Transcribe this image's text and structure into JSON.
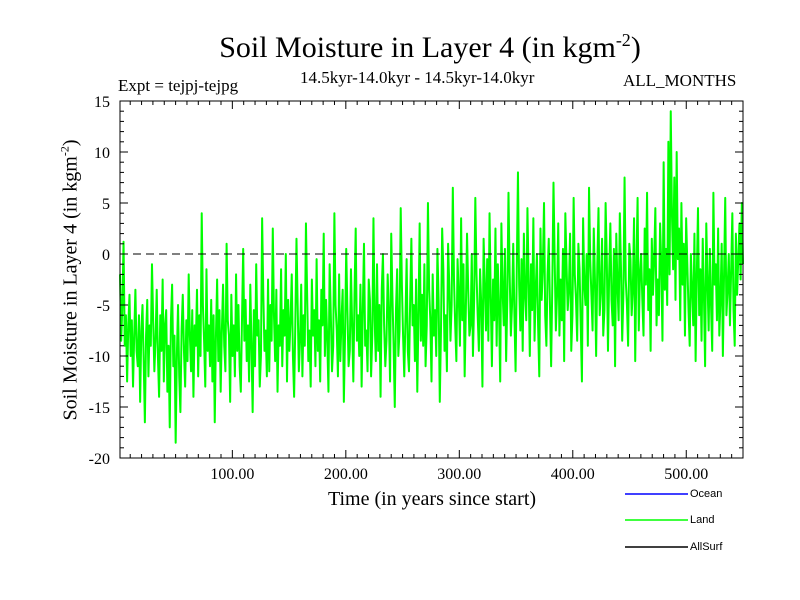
{
  "chart_data": {
    "type": "line",
    "title": "Soil Moisture in Layer 4 (in kgm",
    "title_sup": "-2",
    "title_close": ")",
    "expt_label": "Expt = tejpj-tejpg",
    "period_label": "14.5kyr-14.0kyr - 14.5kyr-14.0kyr",
    "months_label": "ALL_MONTHS",
    "ylabel": "Soil Moisture in Layer 4 (in kgm",
    "ylabel_sup": "-2",
    "ylabel_close": ")",
    "xlabel": "Time (in years since start)",
    "xlim": [
      1,
      550
    ],
    "ylim": [
      -20,
      15
    ],
    "y_ticks": [
      -20,
      -15,
      -10,
      -5,
      0,
      5,
      10,
      15
    ],
    "x_ticks": [
      100,
      200,
      300,
      400,
      500
    ],
    "x_tick_labels": [
      "100.00",
      "200.00",
      "300.00",
      "400.00",
      "500.00"
    ],
    "zero_line": 0,
    "series": [
      {
        "name": "Ocean",
        "color": "#0000ff",
        "values": []
      },
      {
        "name": "Land",
        "color": "#00ff00",
        "values": [
          -2.0,
          -8.5,
          -5.0,
          1.2,
          -9.0,
          -6.0,
          -12.5,
          -7.0,
          -4.0,
          -10.0,
          -6.5,
          -13.0,
          -8.0,
          -3.5,
          -9.5,
          -11.0,
          -6.0,
          -14.5,
          -7.5,
          -5.0,
          -10.5,
          -16.5,
          -8.0,
          -4.5,
          -12.0,
          -7.0,
          -9.0,
          -1.0,
          -6.5,
          -11.5,
          -8.5,
          -3.5,
          -10.0,
          -14.0,
          -6.0,
          -9.5,
          -2.5,
          -12.5,
          -7.0,
          -5.5,
          -13.5,
          -9.0,
          -17.0,
          -6.5,
          -3.0,
          -11.0,
          -8.0,
          -18.5,
          -10.0,
          -5.0,
          -12.0,
          -15.5,
          -7.5,
          -4.0,
          -9.5,
          -13.0,
          -6.5,
          -10.5,
          -2.0,
          -8.0,
          -11.5,
          -5.5,
          -14.0,
          -7.0,
          -9.0,
          -3.5,
          -12.0,
          -6.0,
          -10.0,
          4.0,
          -5.0,
          -8.5,
          -13.0,
          -1.5,
          -9.5,
          -7.0,
          -11.0,
          -4.5,
          -12.5,
          -6.0,
          -16.5,
          -8.0,
          -2.5,
          -10.5,
          -5.5,
          -13.5,
          -7.5,
          -3.0,
          -9.0,
          -11.5,
          1.0,
          -6.5,
          -8.0,
          -14.5,
          -4.0,
          -10.0,
          -7.0,
          -12.0,
          -2.0,
          -9.5,
          -5.0,
          -11.0,
          -13.5,
          -6.5,
          0.5,
          -8.5,
          -4.5,
          -10.5,
          -7.0,
          -12.5,
          -3.0,
          -9.0,
          -15.5,
          -5.5,
          -11.0,
          -1.0,
          -8.0,
          -6.5,
          -13.0,
          -10.0,
          3.5,
          -4.0,
          -9.5,
          -7.5,
          -12.0,
          -2.5,
          -11.5,
          -5.0,
          -8.5,
          2.5,
          -6.0,
          -10.5,
          -3.5,
          -13.5,
          -7.0,
          -9.0,
          -1.5,
          -11.0,
          -5.5,
          -8.0,
          0.0,
          -12.5,
          -4.5,
          -9.5,
          -6.5,
          -2.0,
          -10.0,
          -14.0,
          -7.0,
          1.5,
          -5.0,
          -11.5,
          -8.5,
          -3.0,
          -12.0,
          -6.0,
          -9.0,
          3.0,
          -4.0,
          -10.5,
          -7.5,
          -13.0,
          -2.5,
          -8.0,
          -5.5,
          -11.0,
          -0.5,
          -9.5,
          -6.5,
          -12.5,
          -3.5,
          -7.0,
          2.0,
          -10.0,
          -4.5,
          -8.5,
          -13.5,
          -1.0,
          -6.0,
          -11.5,
          -9.0,
          4.0,
          -5.0,
          -7.5,
          -12.0,
          -2.0,
          -10.5,
          -6.5,
          -3.5,
          -14.5,
          -8.0,
          0.5,
          -5.5,
          -11.0,
          -9.5,
          -1.5,
          -7.0,
          -12.5,
          -4.0,
          2.5,
          -8.5,
          -6.0,
          -10.0,
          -3.0,
          -13.0,
          -5.5,
          1.0,
          -9.0,
          -7.5,
          -11.5,
          -2.5,
          -4.5,
          -12.0,
          -8.0,
          3.5,
          -6.5,
          -10.5,
          -1.0,
          -9.5,
          -5.0,
          -14.0,
          -3.5,
          0.0,
          -7.0,
          -11.0,
          -8.5,
          -2.0,
          -6.0,
          -12.5,
          2.0,
          -4.0,
          -9.0,
          -15.0,
          -5.5,
          -1.5,
          -10.0,
          -7.5,
          4.5,
          -3.0,
          -8.0,
          -12.0,
          -6.5,
          -0.5,
          -9.5,
          -11.5,
          -4.5,
          1.5,
          -7.0,
          -5.0,
          -10.5,
          -2.5,
          -13.5,
          -6.0,
          3.0,
          -8.5,
          -4.0,
          -9.0,
          -1.0,
          -11.0,
          -7.0,
          5.0,
          -3.5,
          -6.5,
          -12.5,
          -2.0,
          -8.0,
          -5.5,
          -10.0,
          0.5,
          -4.5,
          -14.5,
          -7.5,
          2.5,
          -1.5,
          -9.5,
          -6.0,
          -11.5,
          1.0,
          -3.0,
          -8.5,
          -5.0,
          6.5,
          -2.5,
          -7.0,
          -10.5,
          -0.5,
          -4.0,
          -9.0,
          3.5,
          -6.5,
          -1.0,
          -12.0,
          -5.5,
          2.0,
          -3.5,
          -8.0,
          -7.0,
          0.0,
          -10.0,
          -4.5,
          5.5,
          -2.0,
          -6.0,
          -9.5,
          -1.5,
          -5.0,
          -13.0,
          1.5,
          -3.0,
          -7.5,
          -0.5,
          -8.5,
          4.0,
          -4.0,
          -11.0,
          -2.5,
          -6.5,
          2.5,
          -9.0,
          -1.0,
          -5.5,
          -12.5,
          3.0,
          -3.5,
          -7.0,
          0.5,
          -10.5,
          -4.5,
          6.0,
          -2.0,
          -8.0,
          -5.0,
          1.0,
          -6.0,
          -11.5,
          -1.5,
          8.0,
          -3.0,
          -7.5,
          -0.5,
          -9.5,
          2.0,
          -4.0,
          -6.5,
          4.5,
          -2.5,
          -10.0,
          -1.0,
          -5.5,
          3.5,
          -8.5,
          -3.5,
          0.0,
          -7.0,
          -12.0,
          2.5,
          -4.5,
          -1.5,
          5.0,
          -6.0,
          -9.0,
          -2.0,
          1.5,
          -5.0,
          -11.0,
          -3.0,
          7.0,
          -0.5,
          -7.5,
          -4.0,
          3.0,
          -8.0,
          -2.5,
          -6.5,
          0.5,
          -10.5,
          4.0,
          -1.0,
          -5.5,
          -3.5,
          2.0,
          -9.5,
          -6.0,
          5.5,
          -2.0,
          -4.5,
          -8.5,
          1.0,
          -1.5,
          -7.0,
          -12.5,
          3.5,
          -3.0,
          -5.0,
          0.0,
          -9.0,
          6.5,
          -0.5,
          -4.0,
          -7.5,
          2.5,
          -2.5,
          -10.0,
          -1.0,
          4.5,
          -6.0,
          -3.5,
          1.5,
          -8.0,
          -5.5,
          5.0,
          -0.5,
          -9.5,
          -2.0,
          3.0,
          -4.5,
          -7.0,
          0.5,
          -11.0,
          2.0,
          -3.0,
          -6.5,
          4.0,
          -1.5,
          -8.5,
          -4.0,
          7.5,
          -2.5,
          -5.0,
          -9.0,
          1.0,
          -0.5,
          -6.0,
          -3.5,
          3.5,
          -10.5,
          -1.0,
          5.5,
          -7.5,
          -2.0,
          0.0,
          -4.5,
          -8.0,
          2.5,
          -3.0,
          6.0,
          -5.5,
          -1.5,
          -9.5,
          1.5,
          -4.0,
          -0.5,
          4.5,
          -7.0,
          -2.5,
          -6.0,
          3.0,
          -1.0,
          -8.5,
          9.0,
          -3.5,
          0.5,
          -5.0,
          11.0,
          -2.0,
          14.0,
          4.0,
          -1.5,
          7.5,
          -4.5,
          10.0,
          -0.5,
          2.5,
          -6.5,
          5.0,
          -3.0,
          1.0,
          -8.0,
          3.5,
          -1.0,
          -5.5,
          -9.0,
          0.0,
          -3.5,
          -7.0,
          2.0,
          -10.5,
          -2.0,
          4.5,
          -6.0,
          -1.5,
          -8.5,
          1.5,
          -4.0,
          -11.0,
          3.0,
          -2.5,
          -7.5,
          0.5,
          -5.0,
          -9.5,
          6.0,
          -3.0,
          -1.0,
          -6.5,
          2.5,
          -8.0,
          -4.5,
          1.0,
          -10.0,
          -2.0,
          5.5,
          -6.0,
          -3.5,
          0.0,
          -7.0,
          -1.5,
          4.0,
          -5.5,
          -9.0,
          2.0,
          -4.0,
          -0.5,
          3.0,
          -2.5,
          5.0,
          -1.0
        ]
      },
      {
        "name": "AllSurf",
        "color": "#000000",
        "values": []
      }
    ]
  }
}
